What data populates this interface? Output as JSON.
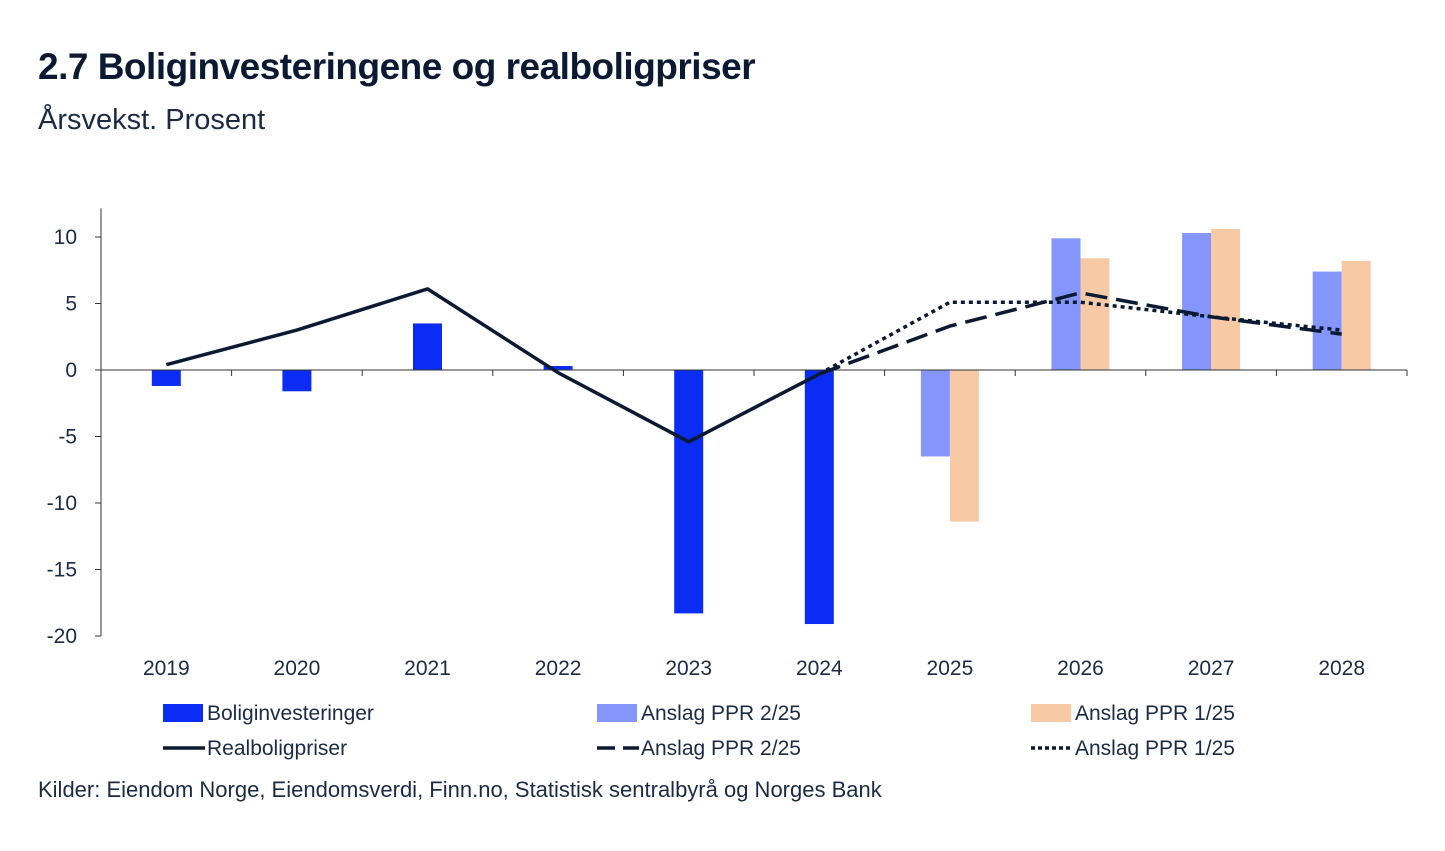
{
  "title": "2.7 Boliginvesteringene og realboligpriser",
  "subtitle": "Årsvekst. Prosent",
  "source": "Kilder: Eiendom Norge, Eiendomsverdi, Finn.no, Statistisk sentralbyrå og Norges Bank",
  "colors": {
    "bolig": "#0b2cf2",
    "ppr225_bar": "#8495fb",
    "ppr125_bar": "#f7c9a5",
    "line": "#0b1a33",
    "axis": "#333333"
  },
  "chart_data": {
    "type": "bar",
    "categories": [
      "2019",
      "2020",
      "2021",
      "2022",
      "2023",
      "2024",
      "2025",
      "2026",
      "2027",
      "2028"
    ],
    "ylim": [
      -20,
      12
    ],
    "yticks": [
      10,
      5,
      0,
      -5,
      -10,
      -15,
      -20
    ],
    "ytick_labels": [
      "10",
      "5",
      "0",
      "-5",
      "-10",
      "-15",
      "-20"
    ],
    "bar_series": [
      {
        "name": "Boliginvesteringer",
        "key": "bolig",
        "values": [
          -1.2,
          -1.6,
          3.5,
          0.3,
          -18.3,
          -19.1,
          null,
          null,
          null,
          null
        ]
      },
      {
        "name": "Anslag PPR 2/25",
        "key": "ppr225_bar",
        "values": [
          null,
          null,
          null,
          null,
          null,
          null,
          -6.5,
          9.9,
          10.3,
          7.4
        ]
      },
      {
        "name": "Anslag PPR 1/25",
        "key": "ppr125_bar",
        "values": [
          null,
          null,
          null,
          null,
          null,
          null,
          -11.4,
          8.4,
          10.6,
          8.2
        ]
      }
    ],
    "line_series": [
      {
        "name": "Realboligpriser",
        "style": "solid",
        "values": [
          0.4,
          3.0,
          6.1,
          -0.2,
          -5.4,
          -0.3,
          null,
          null,
          null,
          null
        ]
      },
      {
        "name": "Anslag PPR 2/25",
        "style": "dashed",
        "values": [
          null,
          null,
          null,
          null,
          null,
          -0.3,
          3.3,
          5.8,
          4.0,
          2.7
        ]
      },
      {
        "name": "Anslag PPR 1/25",
        "style": "dotted",
        "values": [
          null,
          null,
          null,
          null,
          null,
          -0.3,
          5.1,
          5.1,
          4.0,
          3.0
        ]
      }
    ]
  }
}
